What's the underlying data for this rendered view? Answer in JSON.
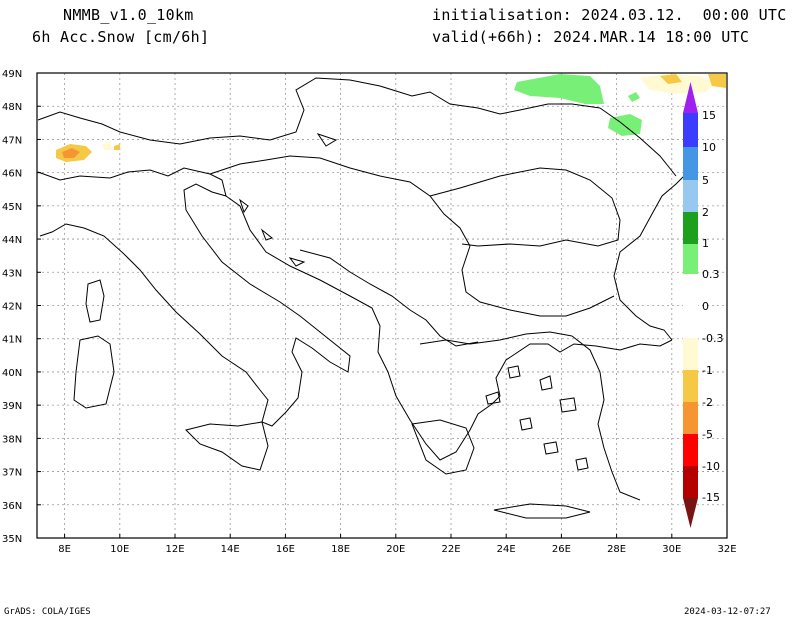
{
  "header": {
    "model": "NMMB_v1.0_10km",
    "field": "6h Acc.Snow [cm/6h]",
    "init": "initialisation: 2024.03.12.  00:00 UTC",
    "valid": "valid(+66h): 2024.MAR.14 18:00 UTC"
  },
  "footer": {
    "credit": "GrADS: COLA/IGES",
    "stamp": "2024-03-12-07:27"
  },
  "map": {
    "lat_labels": [
      "49N",
      "48N",
      "47N",
      "46N",
      "45N",
      "44N",
      "43N",
      "42N",
      "41N",
      "40N",
      "39N",
      "38N",
      "37N",
      "36N",
      "35N"
    ],
    "lon_labels": [
      "8E",
      "10E",
      "12E",
      "14E",
      "16E",
      "18E",
      "20E",
      "22E",
      "24E",
      "26E",
      "28E",
      "30E",
      "32E"
    ],
    "lon_range": [
      7,
      32
    ],
    "lat_range": [
      35,
      49
    ]
  },
  "colorbar": {
    "labels": [
      "15",
      "10",
      "5",
      "2",
      "1",
      "0.3",
      "0",
      "-0.3",
      "-1",
      "-2",
      "-5",
      "-10",
      "-15"
    ],
    "colors": {
      "top_arrow": "#a020f0",
      "c1": "#3c3cff",
      "c2": "#4696e6",
      "c3": "#96c8f0",
      "c4": "#1ea01e",
      "c5": "#78f078",
      "c6": "#fffad2",
      "c7": "#f5c846",
      "c8": "#f59632",
      "c9": "#ff0000",
      "c10": "#b40000",
      "bottom_arrow": "#781414"
    }
  },
  "snow_colors": {
    "green": "#78f078",
    "pale": "#fffad2",
    "yellow": "#f5c846",
    "orange": "#f59632"
  }
}
